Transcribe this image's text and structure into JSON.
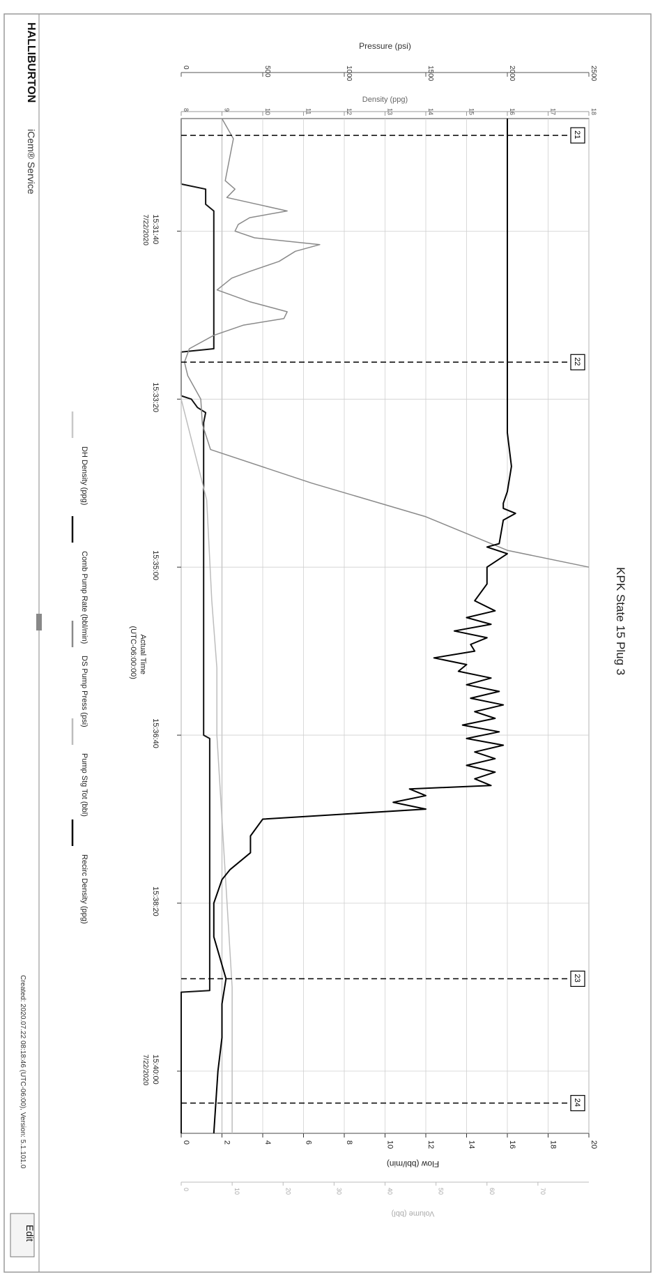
{
  "header": {
    "brand": "HALLIBURTON",
    "product": "iCem® Service",
    "created": "Created: 2020.07.22 08:18:46 (UTC-06:00), Version: 5.1.101.0",
    "edit_label": "Edit"
  },
  "chart_data": {
    "type": "line",
    "title": "KPK State 15 Plug 3",
    "xlabel": "Actual Time",
    "xlabel_sub": "(UTC-06:00:00)",
    "x_ticks": [
      {
        "t": 100,
        "label": "15:31:40",
        "date": "7/22/2020"
      },
      {
        "t": 200,
        "label": "15:33:20"
      },
      {
        "t": 300,
        "label": "15:35:00"
      },
      {
        "t": 400,
        "label": "15:36:40"
      },
      {
        "t": 500,
        "label": "15:38:20"
      },
      {
        "t": 600,
        "label": "15:40:00",
        "date": "7/22/2020"
      }
    ],
    "xlim": [
      33,
      637
    ],
    "axes": {
      "pressure": {
        "label": "Pressure (psi)",
        "lim": [
          0,
          2500
        ],
        "ticks": [
          "0",
          "500",
          "1000",
          "1500",
          "2000",
          "2500"
        ]
      },
      "density": {
        "label": "Density (ppg)",
        "lim": [
          8,
          18
        ],
        "ticks": [
          "8",
          "9",
          "10",
          "11",
          "12",
          "13",
          "14",
          "15",
          "16",
          "17",
          "18"
        ]
      },
      "flow": {
        "label": "Flow (bbl/min)",
        "lim": [
          0,
          20
        ],
        "ticks": [
          "0",
          "2",
          "4",
          "6",
          "8",
          "10",
          "12",
          "14",
          "16",
          "18",
          "20"
        ]
      },
      "volume": {
        "label": "Volume (bbl)",
        "lim": [
          0,
          80
        ],
        "ticks": [
          "0",
          "10",
          "20",
          "30",
          "40",
          "50",
          "60",
          "70"
        ]
      }
    },
    "grid": true,
    "events": [
      {
        "t": 43,
        "label": "21"
      },
      {
        "t": 178,
        "label": "22"
      },
      {
        "t": 545,
        "label": "23"
      },
      {
        "t": 619,
        "label": "24"
      }
    ],
    "legend": [
      {
        "name": "DH Density (ppg)",
        "color": "#c8c8c8"
      },
      {
        "name": "Comb Pump Rate (bbl/min)",
        "color": "#111111"
      },
      {
        "name": "DS Pump Press (psi)",
        "color": "#8a8a8a"
      },
      {
        "name": "Pump Stg Tot (bbl)",
        "color": "#bdbdbd"
      },
      {
        "name": "Recirc Density (ppg)",
        "color": "#000000"
      }
    ],
    "series": [
      {
        "name": "DH Density (ppg)",
        "axis": "density",
        "color": "#c8c8c8",
        "points": [
          [
            33,
            9.0
          ],
          [
            80,
            9.0
          ],
          [
            200,
            9.0
          ],
          [
            300,
            9.0
          ],
          [
            400,
            9.0
          ],
          [
            480,
            9.0
          ],
          [
            540,
            9.0
          ],
          [
            560,
            9.0
          ],
          [
            600,
            9.0
          ],
          [
            637,
            9.0
          ]
        ]
      },
      {
        "name": "Comb Pump Rate (bbl/min)",
        "axis": "flow",
        "color": "#111111",
        "points": [
          [
            33,
            0
          ],
          [
            72,
            0
          ],
          [
            75,
            1.2
          ],
          [
            84,
            1.2
          ],
          [
            88,
            1.6
          ],
          [
            170,
            1.6
          ],
          [
            172,
            0
          ],
          [
            198,
            0
          ],
          [
            200,
            0.5
          ],
          [
            205,
            0.8
          ],
          [
            208,
            1.2
          ],
          [
            214,
            1.1
          ],
          [
            230,
            1.1
          ],
          [
            400,
            1.1
          ],
          [
            402,
            1.4
          ],
          [
            552,
            1.4
          ],
          [
            553,
            0
          ],
          [
            637,
            0
          ]
        ]
      },
      {
        "name": "DS Pump Press (psi)",
        "axis": "pressure",
        "color": "#8a8a8a",
        "points": [
          [
            33,
            250
          ],
          [
            45,
            320
          ],
          [
            55,
            300
          ],
          [
            70,
            270
          ],
          [
            75,
            330
          ],
          [
            80,
            280
          ],
          [
            88,
            650
          ],
          [
            92,
            420
          ],
          [
            96,
            350
          ],
          [
            100,
            330
          ],
          [
            104,
            450
          ],
          [
            108,
            850
          ],
          [
            112,
            700
          ],
          [
            118,
            600
          ],
          [
            124,
            420
          ],
          [
            128,
            310
          ],
          [
            135,
            220
          ],
          [
            142,
            420
          ],
          [
            148,
            650
          ],
          [
            152,
            630
          ],
          [
            156,
            380
          ],
          [
            162,
            200
          ],
          [
            170,
            50
          ],
          [
            178,
            20
          ],
          [
            186,
            40
          ],
          [
            200,
            120
          ],
          [
            215,
            130
          ],
          [
            230,
            180
          ],
          [
            250,
            800
          ],
          [
            270,
            1500
          ],
          [
            290,
            2000
          ],
          [
            300,
            2500
          ]
        ]
      },
      {
        "name": "Pump Stg Tot (bbl)",
        "axis": "volume",
        "color": "#bdbdbd",
        "points": [
          [
            33,
            0
          ],
          [
            100,
            0
          ],
          [
            172,
            0
          ],
          [
            200,
            0
          ],
          [
            260,
            5
          ],
          [
            320,
            6
          ],
          [
            360,
            7
          ],
          [
            400,
            7
          ],
          [
            450,
            8
          ],
          [
            500,
            9
          ],
          [
            550,
            10
          ],
          [
            600,
            10
          ],
          [
            637,
            10
          ]
        ]
      },
      {
        "name": "Recirc Density (ppg)",
        "axis": "density",
        "color": "#000000",
        "points": [
          [
            33,
            16.0
          ],
          [
            200,
            16.0
          ],
          [
            220,
            16.0
          ],
          [
            240,
            16.1
          ],
          [
            255,
            16.0
          ],
          [
            262,
            15.9
          ],
          [
            265,
            15.9
          ],
          [
            268,
            16.2
          ],
          [
            272,
            15.9
          ],
          [
            286,
            15.8
          ],
          [
            288,
            15.5
          ],
          [
            292,
            16.0
          ],
          [
            300,
            15.5
          ],
          [
            310,
            15.5
          ],
          [
            320,
            15.2
          ],
          [
            326,
            15.7
          ],
          [
            330,
            15.0
          ],
          [
            334,
            15.6
          ],
          [
            338,
            14.7
          ],
          [
            342,
            15.5
          ],
          [
            346,
            15.1
          ],
          [
            350,
            15.2
          ],
          [
            354,
            14.2
          ],
          [
            358,
            15.0
          ],
          [
            362,
            14.8
          ],
          [
            366,
            15.6
          ],
          [
            370,
            15.0
          ],
          [
            374,
            15.8
          ],
          [
            378,
            15.1
          ],
          [
            382,
            15.9
          ],
          [
            386,
            15.2
          ],
          [
            390,
            15.7
          ],
          [
            394,
            14.9
          ],
          [
            398,
            15.8
          ],
          [
            402,
            15.0
          ],
          [
            406,
            15.9
          ],
          [
            410,
            15.2
          ],
          [
            414,
            15.7
          ],
          [
            418,
            15.0
          ],
          [
            422,
            15.7
          ],
          [
            426,
            15.2
          ],
          [
            430,
            15.6
          ],
          [
            432,
            13.6
          ],
          [
            436,
            14.0
          ],
          [
            440,
            13.2
          ],
          [
            444,
            14.0
          ],
          [
            450,
            10.0
          ],
          [
            460,
            9.7
          ],
          [
            470,
            9.7
          ],
          [
            480,
            9.2
          ],
          [
            486,
            9.0
          ],
          [
            500,
            8.8
          ],
          [
            520,
            8.8
          ],
          [
            545,
            9.1
          ],
          [
            560,
            9.0
          ],
          [
            580,
            9.0
          ],
          [
            600,
            8.9
          ],
          [
            637,
            8.8
          ]
        ]
      }
    ]
  }
}
